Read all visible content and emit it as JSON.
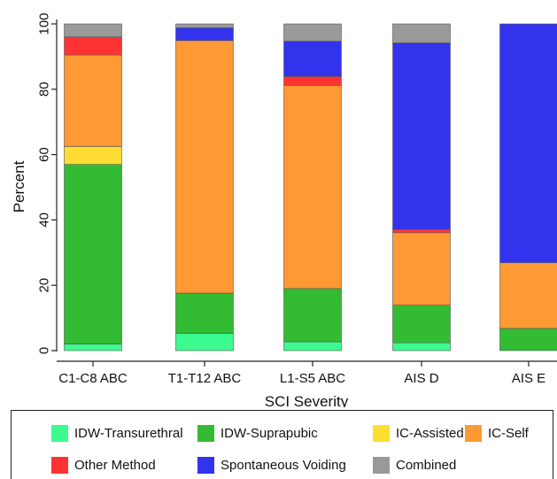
{
  "chart_data": {
    "type": "bar",
    "stacked": true,
    "categories": [
      "C1-C8 ABC",
      "T1-T12 ABC",
      "L1-S5 ABC",
      "AIS D",
      "AIS E"
    ],
    "xlabel": "SCI Severity",
    "ylabel": "Percent",
    "ylim": [
      0,
      100
    ],
    "yticks": [
      0,
      20,
      40,
      60,
      80,
      100
    ],
    "grid": false,
    "legend_position": "bottom",
    "series": [
      {
        "name": "IDW-Transurethral",
        "color": "#3dfa91",
        "values": [
          2,
          5.3,
          2.7,
          2.4,
          0
        ]
      },
      {
        "name": "IDW-Suprapubic",
        "color": "#33bb33",
        "values": [
          55,
          12.3,
          16.3,
          11.5,
          6.8
        ]
      },
      {
        "name": "IC-Assisted",
        "color": "#ffdd33",
        "values": [
          5.5,
          0,
          0,
          0,
          0
        ]
      },
      {
        "name": "IC-Self",
        "color": "#ff9933",
        "values": [
          28,
          77.3,
          62.2,
          22.2,
          20.1
        ]
      },
      {
        "name": "Other Method",
        "color": "#ff3333",
        "values": [
          5.5,
          0,
          2.7,
          1,
          0
        ]
      },
      {
        "name": "Spontaneous Voiding",
        "color": "#3333ee",
        "values": [
          0,
          3.9,
          10.8,
          57.1,
          73.1
        ]
      },
      {
        "name": "Combined",
        "color": "#999999",
        "values": [
          4,
          1.2,
          5.3,
          5.8,
          0
        ]
      }
    ]
  }
}
